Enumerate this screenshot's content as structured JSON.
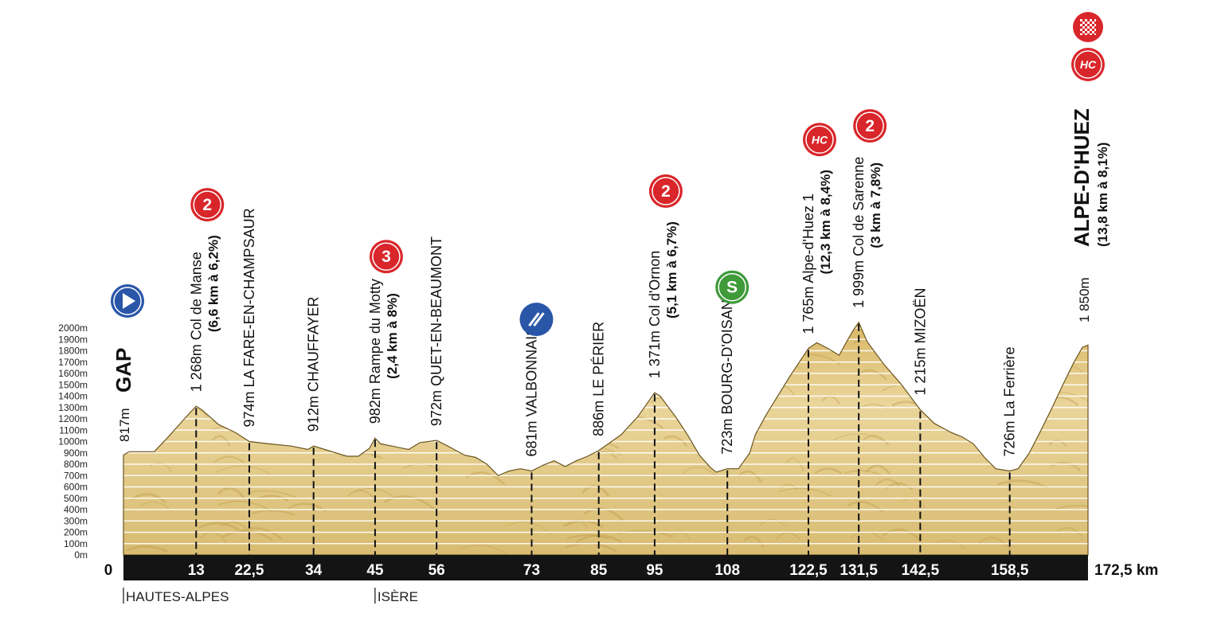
{
  "chart_data": {
    "type": "area",
    "xlabel": "",
    "ylabel": "",
    "xlim": [
      0,
      172.5
    ],
    "ylim": [
      0,
      2000
    ],
    "x_unit": "km",
    "start_label": "0",
    "end_label": "172,5 km",
    "y_ticks": [
      "0m",
      "100m",
      "200m",
      "300m",
      "400m",
      "500m",
      "600m",
      "700m",
      "800m",
      "900m",
      "1000m",
      "1100m",
      "1200m",
      "1300m",
      "1400m",
      "1500m",
      "1600m",
      "1700m",
      "1800m",
      "1900m",
      "2000m"
    ],
    "x_ticks": [
      {
        "x": 13,
        "label": "13"
      },
      {
        "x": 22.5,
        "label": "22,5"
      },
      {
        "x": 34,
        "label": "34"
      },
      {
        "x": 45,
        "label": "45"
      },
      {
        "x": 56,
        "label": "56"
      },
      {
        "x": 73,
        "label": "73"
      },
      {
        "x": 85,
        "label": "85"
      },
      {
        "x": 95,
        "label": "95"
      },
      {
        "x": 108,
        "label": "108"
      },
      {
        "x": 122.5,
        "label": "122,5"
      },
      {
        "x": 131.5,
        "label": "131,5"
      },
      {
        "x": 142.5,
        "label": "142,5"
      },
      {
        "x": 158.5,
        "label": "158,5"
      }
    ],
    "profile": [
      [
        0,
        880
      ],
      [
        1,
        910
      ],
      [
        5.5,
        910
      ],
      [
        8,
        1040
      ],
      [
        10,
        1150
      ],
      [
        12,
        1260
      ],
      [
        13,
        1310
      ],
      [
        14,
        1280
      ],
      [
        17,
        1150
      ],
      [
        20,
        1080
      ],
      [
        22.5,
        1000
      ],
      [
        26,
        980
      ],
      [
        30,
        960
      ],
      [
        33,
        930
      ],
      [
        34,
        960
      ],
      [
        36,
        930
      ],
      [
        38,
        900
      ],
      [
        40,
        870
      ],
      [
        42,
        870
      ],
      [
        44,
        940
      ],
      [
        45,
        1030
      ],
      [
        46,
        980
      ],
      [
        48,
        960
      ],
      [
        51,
        930
      ],
      [
        53,
        990
      ],
      [
        56,
        1010
      ],
      [
        58,
        960
      ],
      [
        61,
        880
      ],
      [
        63,
        860
      ],
      [
        65,
        800
      ],
      [
        67,
        700
      ],
      [
        69,
        740
      ],
      [
        71,
        760
      ],
      [
        73,
        740
      ],
      [
        75,
        790
      ],
      [
        77,
        830
      ],
      [
        79,
        780
      ],
      [
        81,
        830
      ],
      [
        83,
        870
      ],
      [
        85,
        920
      ],
      [
        87,
        990
      ],
      [
        89,
        1060
      ],
      [
        92,
        1220
      ],
      [
        94,
        1360
      ],
      [
        95,
        1430
      ],
      [
        96,
        1400
      ],
      [
        99,
        1200
      ],
      [
        101,
        1050
      ],
      [
        103,
        880
      ],
      [
        105,
        770
      ],
      [
        106,
        730
      ],
      [
        108,
        760
      ],
      [
        110,
        760
      ],
      [
        112,
        900
      ],
      [
        113,
        1060
      ],
      [
        115,
        1240
      ],
      [
        117,
        1400
      ],
      [
        119,
        1560
      ],
      [
        121,
        1710
      ],
      [
        122.5,
        1820
      ],
      [
        124,
        1870
      ],
      [
        126,
        1820
      ],
      [
        128,
        1760
      ],
      [
        129,
        1850
      ],
      [
        130.5,
        1980
      ],
      [
        131.5,
        2050
      ],
      [
        133,
        1880
      ],
      [
        136,
        1680
      ],
      [
        139,
        1510
      ],
      [
        142.5,
        1280
      ],
      [
        145,
        1160
      ],
      [
        148,
        1080
      ],
      [
        150,
        1040
      ],
      [
        152,
        980
      ],
      [
        154,
        860
      ],
      [
        156,
        760
      ],
      [
        158.5,
        740
      ],
      [
        160,
        760
      ],
      [
        162,
        900
      ],
      [
        164,
        1090
      ],
      [
        166,
        1290
      ],
      [
        168,
        1500
      ],
      [
        170,
        1700
      ],
      [
        171.5,
        1830
      ],
      [
        172.5,
        1850
      ]
    ],
    "points": [
      {
        "x": 0,
        "alt": "817m",
        "name": "GAP",
        "detail": "",
        "style": "town-big",
        "badge": "start",
        "badge_text": "",
        "dash": false
      },
      {
        "x": 13,
        "alt": "1 268m",
        "name": "Col de Manse",
        "detail": "(6,6 km à 6,2%)",
        "style": "climb",
        "badge": "red",
        "badge_text": "2",
        "dash": true
      },
      {
        "x": 22.5,
        "alt": "974m",
        "name": "LA FARE-EN-CHAMPSAUR",
        "detail": "",
        "style": "town",
        "badge": "",
        "badge_text": "",
        "dash": true
      },
      {
        "x": 34,
        "alt": "912m",
        "name": "CHAUFFAYER",
        "detail": "",
        "style": "town",
        "badge": "",
        "badge_text": "",
        "dash": true
      },
      {
        "x": 45,
        "alt": "982m",
        "name": "Rampe du Motty",
        "detail": "(2,4 km à 8%)",
        "style": "climb",
        "badge": "red",
        "badge_text": "3",
        "dash": true
      },
      {
        "x": 56,
        "alt": "972m",
        "name": "QUET-EN-BEAUMONT",
        "detail": "",
        "style": "town",
        "badge": "",
        "badge_text": "",
        "dash": true
      },
      {
        "x": 73,
        "alt": "681m",
        "name": "VALBONNAIS",
        "detail": "",
        "style": "town",
        "badge": "feed",
        "badge_text": "",
        "dash": true
      },
      {
        "x": 85,
        "alt": "886m",
        "name": "LE PÉRIER",
        "detail": "",
        "style": "town",
        "badge": "",
        "badge_text": "",
        "dash": true
      },
      {
        "x": 95,
        "alt": "1 371m",
        "name": "Col d'Ornon",
        "detail": "(5,1 km à 6,7%)",
        "style": "climb",
        "badge": "red",
        "badge_text": "2",
        "dash": true
      },
      {
        "x": 108,
        "alt": "723m",
        "name": "BOURG-D'OISANS",
        "detail": "",
        "style": "town",
        "badge": "green",
        "badge_text": "S",
        "dash": true
      },
      {
        "x": 122.5,
        "alt": "1 765m",
        "name": "Alpe-d'Huez 1",
        "detail": "(12,3 km à 8,4%)",
        "style": "climb",
        "badge": "red",
        "badge_text": "HC",
        "dash": true
      },
      {
        "x": 131.5,
        "alt": "1 999m",
        "name": "Col de Sarenne",
        "detail": "(3 km à 7,8%)",
        "style": "climb",
        "badge": "red",
        "badge_text": "2",
        "dash": true
      },
      {
        "x": 142.5,
        "alt": "1 215m",
        "name": "MIZOËN",
        "detail": "",
        "style": "town",
        "badge": "",
        "badge_text": "",
        "dash": true
      },
      {
        "x": 158.5,
        "alt": "726m",
        "name": "La Ferrière",
        "detail": "",
        "style": "town",
        "badge": "",
        "badge_text": "",
        "dash": true
      },
      {
        "x": 172.5,
        "alt": "1 850m",
        "name": "ALPE-D'HUEZ",
        "detail": "(13,8 km à 8,1%)",
        "style": "finish",
        "badge": "red",
        "badge_text": "HC",
        "dash": false
      }
    ],
    "regions": [
      {
        "x": 0,
        "label": "HAUTES-ALPES"
      },
      {
        "x": 45,
        "label": "ISÈRE"
      }
    ],
    "colors": {
      "fill": "#e6cc84",
      "fill_dark": "#b8943f",
      "outline": "#6b5520",
      "axis_bar": "#141414",
      "badge_red": "#d9262a",
      "badge_green": "#3f9a3a",
      "badge_blue": "#2a56a8",
      "finish_flag": "#d9262a"
    }
  }
}
